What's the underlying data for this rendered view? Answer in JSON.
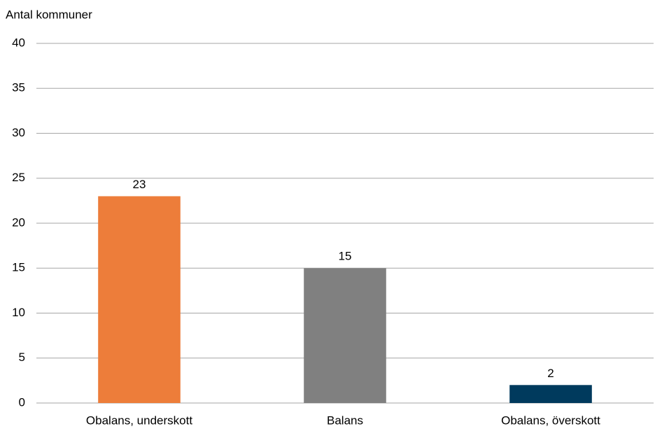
{
  "chart_data": {
    "type": "bar",
    "y_axis_label": "Antal kommuner",
    "categories": [
      "Obalans, underskott",
      "Balans",
      "Obalans, överskott"
    ],
    "values": [
      23,
      15,
      2
    ],
    "colors": [
      "#ED7D3A",
      "#808080",
      "#003A5D"
    ],
    "ylim": [
      0,
      40
    ],
    "yticks": [
      0,
      5,
      10,
      15,
      20,
      25,
      30,
      35,
      40
    ],
    "grid": true
  }
}
